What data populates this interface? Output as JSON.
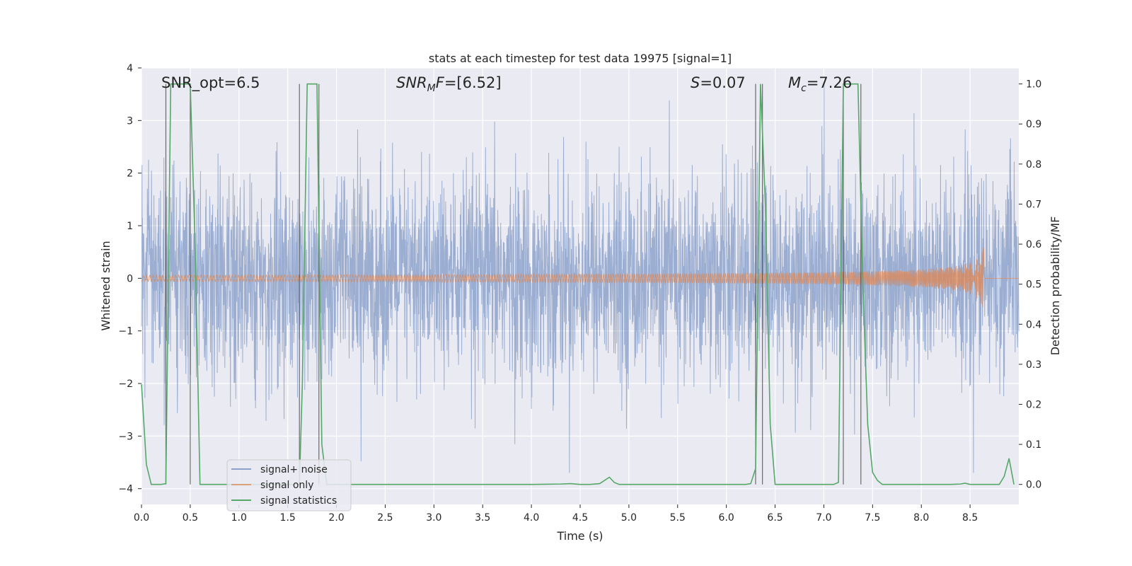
{
  "chart_data": {
    "type": "line",
    "title": "stats at each timestep for test data 19975 [signal=1]",
    "xlabel": "Time (s)",
    "ylabel": "Whitened strain",
    "y2label": "Detection probability/MF",
    "xlim": [
      0.0,
      9.0
    ],
    "ylim": [
      -4.3,
      4.0
    ],
    "y2lim": [
      -0.05,
      1.04
    ],
    "x_ticks": [
      "0.0",
      "0.5",
      "1.0",
      "1.5",
      "2.0",
      "2.5",
      "3.0",
      "3.5",
      "4.0",
      "4.5",
      "5.0",
      "5.5",
      "6.0",
      "6.5",
      "7.0",
      "7.5",
      "8.0",
      "8.5"
    ],
    "y_ticks": [
      "4",
      "3",
      "2",
      "1",
      "0",
      "−1",
      "−2",
      "−3",
      "−4"
    ],
    "y2_ticks": [
      "1.0",
      "0.9",
      "0.8",
      "0.7",
      "0.6",
      "0.5",
      "0.4",
      "0.3",
      "0.2",
      "0.1",
      "0.0"
    ],
    "grid": true,
    "annotations": {
      "snr_opt": "SNR_opt=6.5",
      "snr_mf_sym": "SNR",
      "snr_mf_sub": "M",
      "snr_mf_rest": "F=[6.52]",
      "s_sym": "S",
      "s_val": "=0.07",
      "mc_sym": "M",
      "mc_sub": "c",
      "mc_val": "=7.26"
    },
    "legend": {
      "position": "lower-left",
      "entries": [
        "signal+ noise",
        "signal only",
        "signal statistics"
      ]
    },
    "series": [
      {
        "name": "signal+ noise",
        "color": "#4c72b0",
        "axis": "left",
        "description": "whitened strain noise, approx. amplitude between -3.6 and 3.7",
        "envelope": {
          "typical": 1.7,
          "max": 3.7
        }
      },
      {
        "name": "signal only",
        "color": "#dd8452",
        "axis": "left",
        "description": "chirp signal growing until merger near 8.65 s",
        "merger_time": 8.65,
        "peak_amplitude": 0.75
      },
      {
        "name": "signal statistics",
        "color": "#55a868",
        "axis": "right",
        "x": [
          0.0,
          0.05,
          0.1,
          0.15,
          0.2,
          0.25,
          0.3,
          0.35,
          0.4,
          0.45,
          0.5,
          0.55,
          0.6,
          0.65,
          0.7,
          0.75,
          0.8,
          0.85,
          0.9,
          0.95,
          1.0,
          1.1,
          1.2,
          1.3,
          1.4,
          1.5,
          1.55,
          1.6,
          1.62,
          1.65,
          1.7,
          1.75,
          1.8,
          1.85,
          1.9,
          1.95,
          2.0,
          2.5,
          3.0,
          3.5,
          4.0,
          4.3,
          4.4,
          4.5,
          4.6,
          4.7,
          4.75,
          4.8,
          4.85,
          4.9,
          5.0,
          5.5,
          6.0,
          6.2,
          6.25,
          6.3,
          6.35,
          6.4,
          6.45,
          6.5,
          6.6,
          7.0,
          7.1,
          7.15,
          7.2,
          7.25,
          7.3,
          7.35,
          7.4,
          7.45,
          7.5,
          7.55,
          7.6,
          8.0,
          8.1,
          8.2,
          8.3,
          8.4,
          8.45,
          8.5,
          8.6,
          8.8,
          8.85,
          8.9,
          8.95
        ],
        "y": [
          0.25,
          0.05,
          0.0,
          0.0,
          0.0,
          0.002,
          1.0,
          1.0,
          1.0,
          1.0,
          1.0,
          0.6,
          0.0,
          0.0,
          0.0,
          0.0,
          0.0,
          0.0,
          0.0,
          0.0,
          0.0,
          0.0,
          0.0,
          0.0,
          0.0,
          0.0,
          0.0,
          0.0,
          0.0,
          0.25,
          1.0,
          1.0,
          1.0,
          0.1,
          0.0,
          0.0,
          0.0,
          0.0,
          0.0,
          0.0,
          0.0,
          0.001,
          0.002,
          0.0,
          0.0,
          0.002,
          0.01,
          0.018,
          0.005,
          0.0,
          0.0,
          0.0,
          0.0,
          0.0,
          0.002,
          0.04,
          1.0,
          0.7,
          0.15,
          0.0,
          0.0,
          0.0,
          0.0,
          0.005,
          1.0,
          1.0,
          1.0,
          1.0,
          0.5,
          0.15,
          0.03,
          0.01,
          0.0,
          0.0,
          0.0,
          0.0,
          0.0,
          0.001,
          0.003,
          0.0,
          0.0,
          0.0,
          0.02,
          0.065,
          0.0
        ]
      }
    ],
    "vertical_markers": [
      0.25,
      0.5,
      1.62,
      1.82,
      6.3,
      6.37,
      7.2,
      7.38
    ]
  }
}
